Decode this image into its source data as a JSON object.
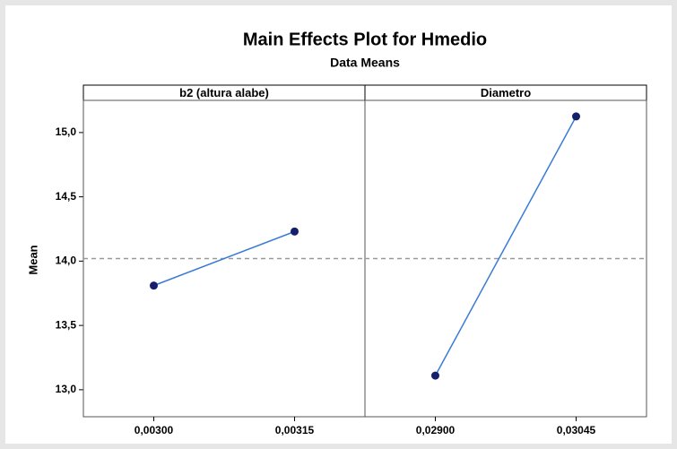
{
  "chart_data": {
    "type": "line",
    "title": "Main Effects Plot for Hmedio",
    "subtitle": "Data Means",
    "y_label": "Mean",
    "ylim": [
      12.79,
      15.25
    ],
    "yticks": [
      {
        "value": 13,
        "label": "13,0"
      },
      {
        "value": 13.5,
        "label": "13,5"
      },
      {
        "value": 14,
        "label": "14,0"
      },
      {
        "value": 14.5,
        "label": "14,5"
      },
      {
        "value": 15,
        "label": "15,0"
      }
    ],
    "reference_line": 14.02,
    "reference_color": "#999999",
    "color": "#3a7bd5",
    "marker_color": "#14206e",
    "panels": [
      {
        "title": "b2 (altura alabe)",
        "categories": [
          "0,00300",
          "0,00315"
        ],
        "values": [
          13.81,
          14.23
        ]
      },
      {
        "title": "Diametro",
        "categories": [
          "0,02900",
          "0,03045"
        ],
        "values": [
          13.11,
          15.125
        ]
      }
    ]
  }
}
